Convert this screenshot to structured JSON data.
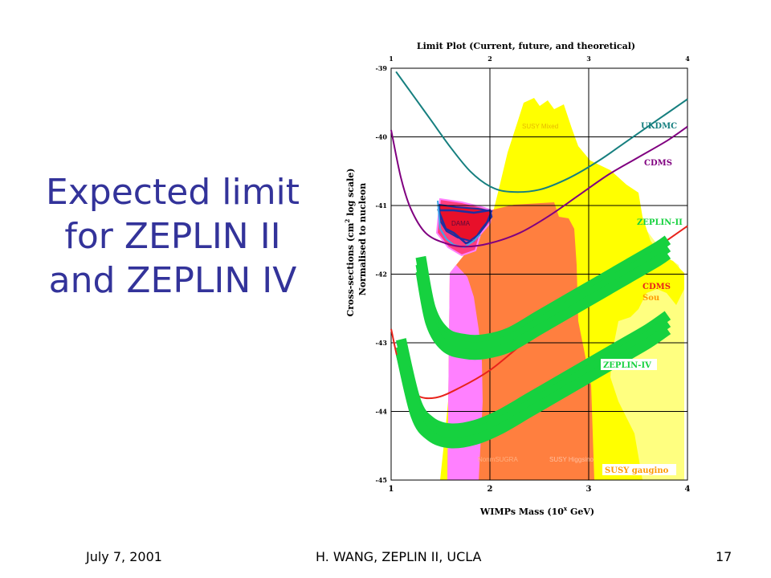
{
  "slide": {
    "title_lines": [
      "Expected limit",
      "for ZEPLIN II",
      "and ZEPLIN IV"
    ],
    "footer": {
      "date": "July 7, 2001",
      "author": "H. WANG, ZEPLIN II, UCLA",
      "page": "17"
    }
  },
  "chart_data": {
    "type": "line",
    "title": "Limit Plot (Current, future, and theoretical)",
    "xlabel": "WIMPs Mass (10",
    "xlabel_sup": "x",
    "xlabel_end": " GeV)",
    "ylabel_line1": "Cross-sections (cm",
    "ylabel_sup": "2",
    "ylabel_line1_end": " log scale)",
    "ylabel_line2": "Normalised to nucleon",
    "xlim": [
      1,
      4
    ],
    "ylim": [
      -45,
      -39
    ],
    "x_ticks": [
      "1",
      "2",
      "3",
      "4"
    ],
    "y_ticks": [
      "-39",
      "-40",
      "-41",
      "-42",
      "-43",
      "-44",
      "-45"
    ],
    "grid": true,
    "colors": {
      "ukdmc": "#167f7f",
      "cdms": "#800080",
      "cdms_soudan": "#e8231b",
      "zeplin": "#16d13f",
      "dama": "#e8102a",
      "susy_mixed": "#ffff00",
      "susy_gaugino": "#ffff80",
      "nonmsugra": "#ff7f3f",
      "susy_higgsino": "#ff80ff",
      "grid": "#000000"
    },
    "series": [
      {
        "name": "UKDMC",
        "x": [
          1.05,
          1.2,
          1.4,
          1.6,
          1.8,
          2.0,
          2.2,
          2.5,
          2.8,
          3.1,
          3.4,
          3.7,
          4.0
        ],
        "y": [
          -39.05,
          -39.35,
          -39.75,
          -40.15,
          -40.5,
          -40.72,
          -40.8,
          -40.77,
          -40.6,
          -40.35,
          -40.05,
          -39.75,
          -39.45
        ]
      },
      {
        "name": "CDMS",
        "x": [
          1.0,
          1.1,
          1.2,
          1.35,
          1.55,
          1.75,
          2.0,
          2.3,
          2.6,
          2.9,
          3.2,
          3.5,
          3.8,
          4.0
        ],
        "y": [
          -39.9,
          -40.6,
          -41.05,
          -41.4,
          -41.55,
          -41.6,
          -41.55,
          -41.4,
          -41.15,
          -40.85,
          -40.55,
          -40.3,
          -40.05,
          -39.85
        ]
      },
      {
        "name": "CDMS Soudan",
        "x": [
          1.0,
          1.1,
          1.25,
          1.45,
          1.7,
          2.0,
          2.3,
          2.6,
          2.9,
          3.2,
          3.5,
          3.8,
          4.0
        ],
        "y": [
          -42.8,
          -43.4,
          -43.75,
          -43.8,
          -43.65,
          -43.4,
          -43.05,
          -42.7,
          -42.4,
          -42.1,
          -41.8,
          -41.5,
          -41.3
        ]
      },
      {
        "name": "ZEPLIN-II",
        "x": [
          1.3,
          1.4,
          1.55,
          1.75,
          1.95,
          2.2,
          2.5,
          2.8,
          3.1,
          3.4,
          3.7,
          3.8
        ],
        "y": [
          -41.75,
          -42.5,
          -42.85,
          -42.95,
          -42.95,
          -42.85,
          -42.6,
          -42.35,
          -42.1,
          -41.85,
          -41.6,
          -41.5
        ]
      },
      {
        "name": "ZEPLIN-IV",
        "x": [
          1.1,
          1.25,
          1.4,
          1.6,
          1.85,
          2.1,
          2.4,
          2.7,
          3.0,
          3.3,
          3.6,
          3.8
        ],
        "y": [
          -42.95,
          -43.85,
          -44.15,
          -44.25,
          -44.2,
          -44.05,
          -43.8,
          -43.55,
          -43.3,
          -43.05,
          -42.8,
          -42.6
        ]
      }
    ],
    "regions": [
      {
        "name": "SUSY Mixed"
      },
      {
        "name": "SUSY gaugino"
      },
      {
        "name": "NonmSUGRA"
      },
      {
        "name": "SUSY Higgsino"
      },
      {
        "name": "DAMA"
      }
    ],
    "labels": {
      "ukdmc": "UKDMC",
      "cdms": "CDMS",
      "zeplin2": "ZEPLIN-II",
      "cdms_soudan_1": "CDMS",
      "cdms_soudan_2": "Sou",
      "zeplin4": "ZEPLIN-IV",
      "susy_gaugino": "SUSY gaugino",
      "susy_mixed": "SUSY Mixed",
      "nonmsugra": "NonmSUGRA",
      "susy_higgsino": "SUSY Higgsino",
      "dama": "DAMA"
    }
  }
}
